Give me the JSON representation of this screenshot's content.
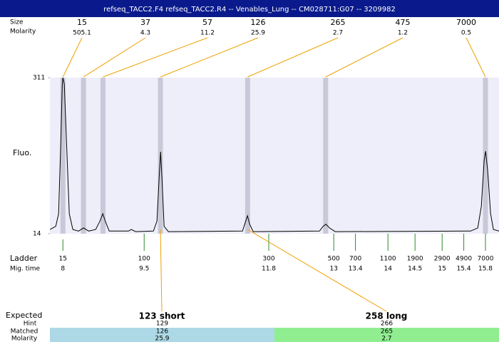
{
  "title": "refseq_TACC2.F4  refseq_TACC2.R4 -- Venables_Lung -- CM028711:G07 -- 3209982",
  "labels": {
    "size": "Size",
    "molarity": "Molarity",
    "fluo": "Fluo.",
    "ladder": "Ladder",
    "mig_time": "Mig. time",
    "expected": "Expected",
    "hint": "Hint",
    "matched": "Matched",
    "molarity_bottom": "Molarity"
  },
  "fluo_axis": {
    "ylim": [
      14,
      311
    ],
    "yticks": [
      14,
      311
    ]
  },
  "time_axis": {
    "xlim": [
      7.76,
      16.05
    ]
  },
  "peaks": [
    {
      "size": 15,
      "molarity": 505.1,
      "mig_time": 8.0
    },
    {
      "size": 37,
      "molarity": 4.3,
      "mig_time": 8.38
    },
    {
      "size": 57,
      "molarity": 11.2,
      "mig_time": 8.74
    },
    {
      "size": 126,
      "molarity": 25.9,
      "mig_time": 9.8
    },
    {
      "size": 265,
      "molarity": 2.7,
      "mig_time": 11.41
    },
    {
      "size": 475,
      "molarity": 1.2,
      "mig_time": 12.85
    },
    {
      "size": 7000,
      "molarity": 0.5,
      "mig_time": 15.8
    }
  ],
  "ladder": [
    {
      "size": 15,
      "mig_time": 8
    },
    {
      "size": 100,
      "mig_time": 9.5
    },
    {
      "size": 300,
      "mig_time": 11.8
    },
    {
      "size": 500,
      "mig_time": 13
    },
    {
      "size": 700,
      "mig_time": 13.4
    },
    {
      "size": 1100,
      "mig_time": 14
    },
    {
      "size": 1900,
      "mig_time": 14.5
    },
    {
      "size": 2900,
      "mig_time": 15
    },
    {
      "size": 4900,
      "mig_time": 15.4
    },
    {
      "size": 7000,
      "mig_time": 15.8
    }
  ],
  "expected": [
    {
      "label": "123 short",
      "hint": 129,
      "matched": 126,
      "molarity": 25.9,
      "color": "#add8e6"
    },
    {
      "label": "258 long",
      "hint": 266,
      "matched": 265,
      "molarity": 2.7,
      "color": "#90ee90"
    }
  ],
  "trace": {
    "color": "#000000",
    "x": [
      7.763,
      7.868,
      7.921,
      7.961,
      7.987,
      8.0,
      8.026,
      8.066,
      8.118,
      8.184,
      8.289,
      8.382,
      8.474,
      8.605,
      8.684,
      8.737,
      8.789,
      8.855,
      9.211,
      9.263,
      9.342,
      9.671,
      9.737,
      9.776,
      9.803,
      9.829,
      9.868,
      9.947,
      11.316,
      11.368,
      11.408,
      11.447,
      11.513,
      12.737,
      12.803,
      12.855,
      12.921,
      13.026,
      15.526,
      15.658,
      15.724,
      15.776,
      15.803,
      15.842,
      15.895,
      15.947,
      16.05
    ],
    "y": [
      22,
      28,
      52,
      188,
      296,
      311,
      299,
      188,
      52,
      22,
      19,
      25,
      19,
      22,
      38,
      52,
      36,
      19,
      19,
      22,
      18,
      19,
      38,
      120,
      170,
      120,
      28,
      18,
      19,
      36,
      48,
      32,
      18,
      19,
      28,
      32,
      25,
      18,
      19,
      25,
      66,
      154,
      171,
      133,
      52,
      22,
      19
    ]
  }
}
